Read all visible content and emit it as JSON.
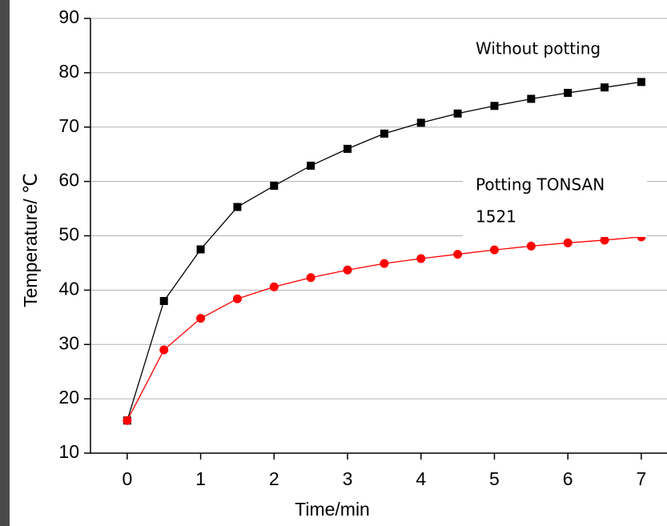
{
  "chart_data": {
    "type": "line",
    "x_label": "Time/min",
    "y_label": "Temperature/ ℃",
    "x": [
      0,
      0.5,
      1,
      1.5,
      2,
      2.5,
      3,
      3.5,
      4,
      4.5,
      5,
      5.5,
      6,
      6.5,
      7
    ],
    "series": [
      {
        "color": "#000000",
        "marker": "square",
        "values": [
          16,
          38,
          47.5,
          55.3,
          59.2,
          62.9,
          66,
          68.8,
          70.8,
          72.5,
          73.9,
          75.2,
          76.3,
          77.3,
          78.3
        ]
      },
      {
        "color": "#ff0000",
        "marker": "circle",
        "values": [
          16,
          29,
          34.8,
          38.4,
          40.6,
          42.3,
          43.7,
          44.9,
          45.8,
          46.6,
          47.4,
          48.1,
          48.7,
          49.2,
          49.8
        ]
      }
    ],
    "annotations": [
      {
        "lines": [
          "Without potting"
        ],
        "series": 0
      },
      {
        "lines": [
          "Potting TONSAN",
          "1521"
        ],
        "series": 1
      }
    ],
    "xlim": [
      -0.5,
      7.35
    ],
    "ylim": [
      10,
      90
    ],
    "xticks": [
      0,
      1,
      2,
      3,
      4,
      5,
      6,
      7
    ],
    "yticks": [
      10,
      20,
      30,
      40,
      50,
      60,
      70,
      80,
      90
    ],
    "grid": true
  }
}
